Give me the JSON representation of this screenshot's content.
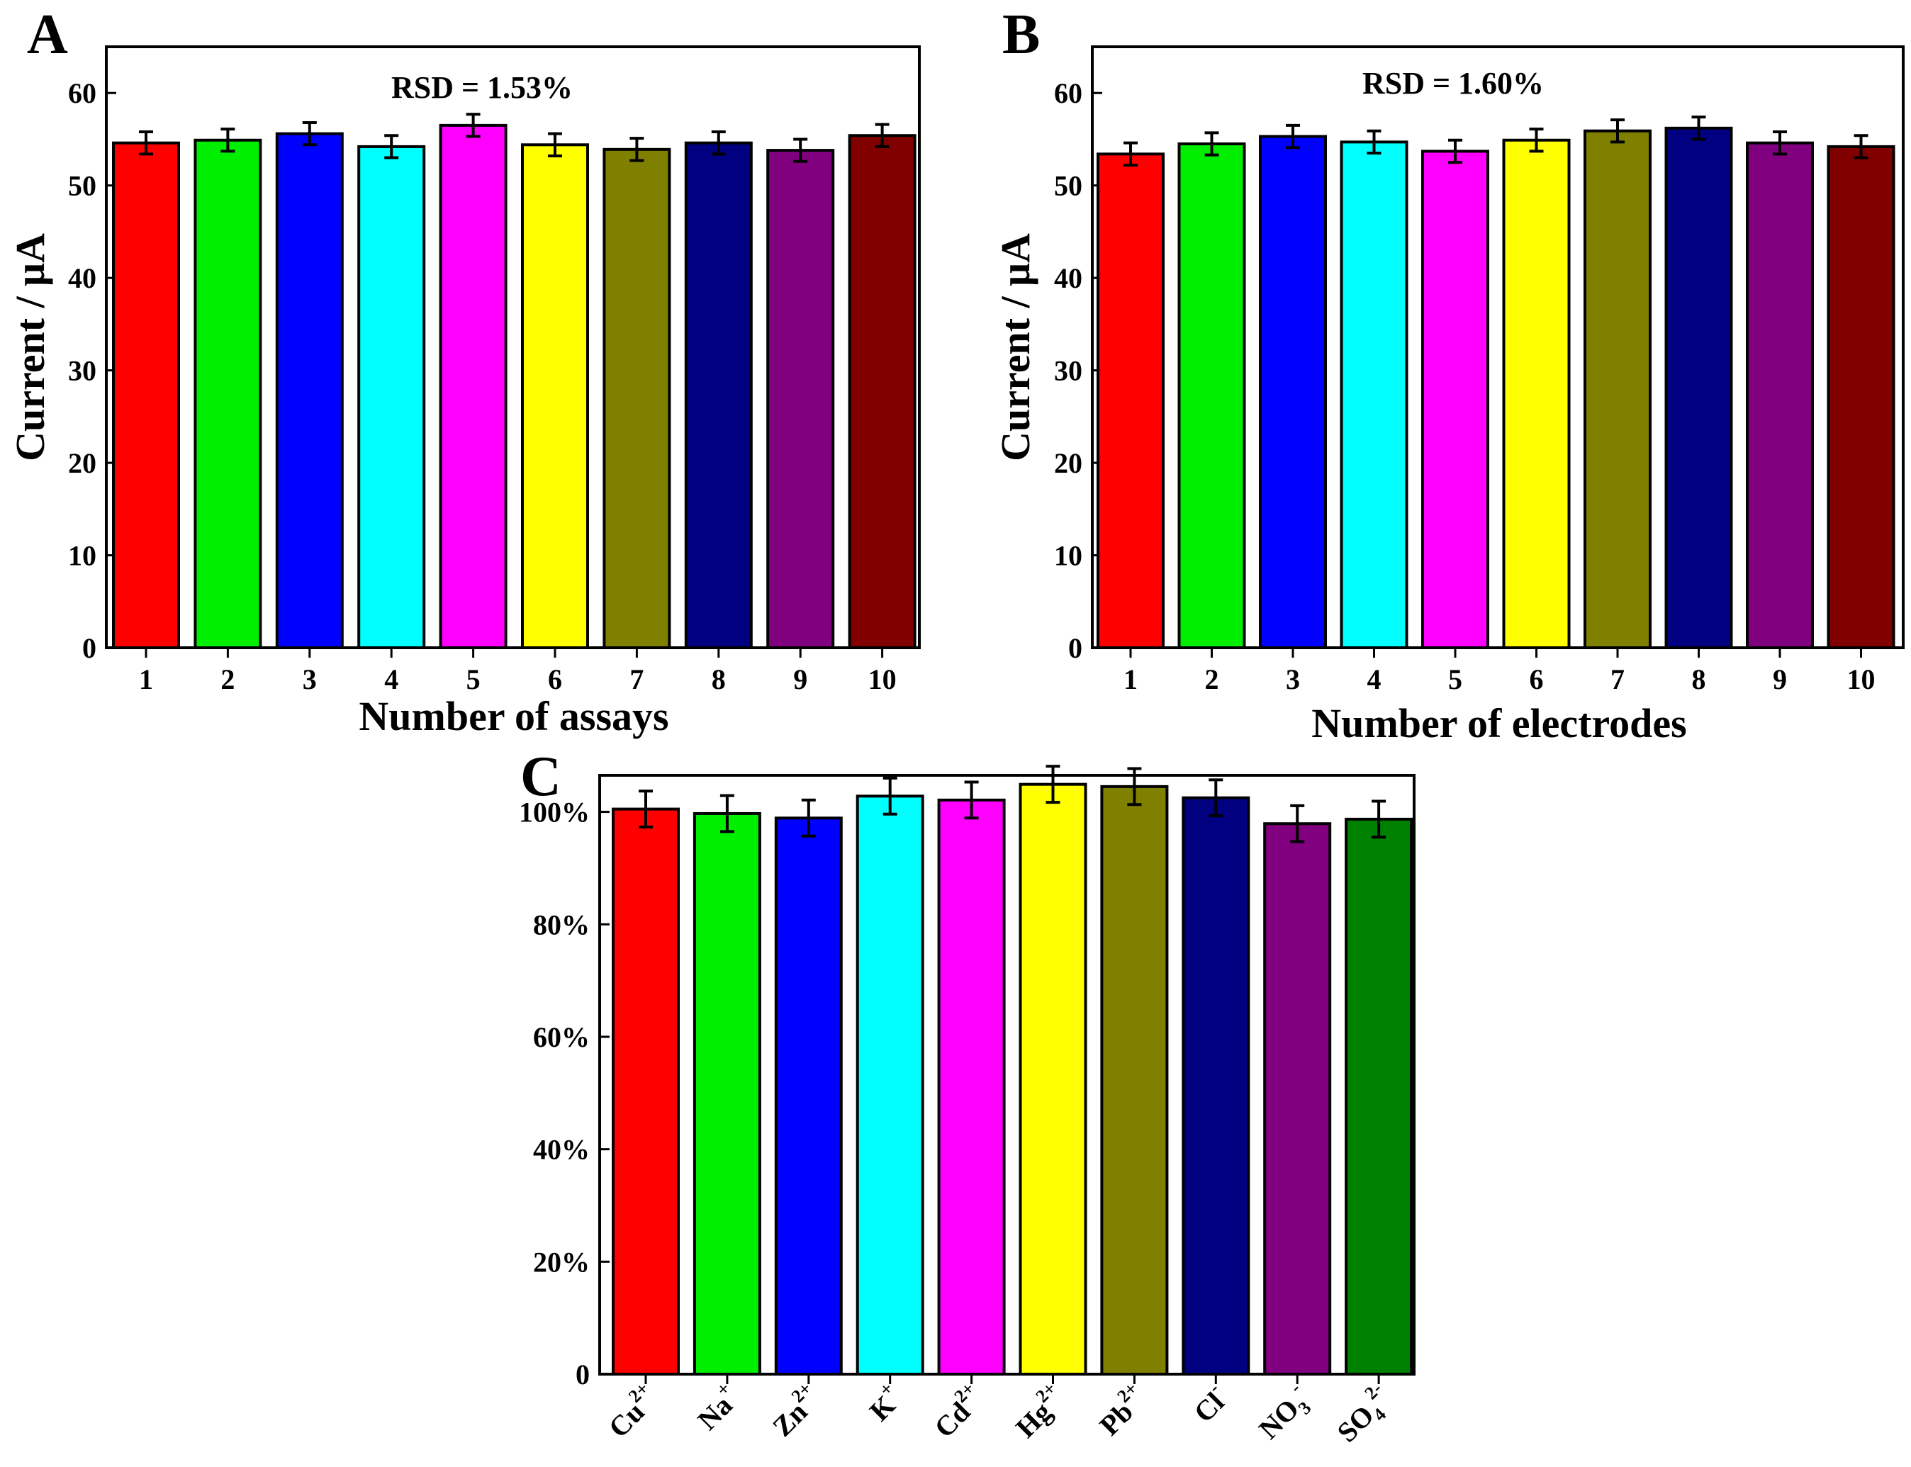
{
  "chart_data": [
    {
      "panel": "A",
      "type": "bar",
      "categories": [
        "1",
        "2",
        "3",
        "4",
        "5",
        "6",
        "7",
        "8",
        "9",
        "10"
      ],
      "values": [
        54.6,
        54.9,
        55.6,
        54.2,
        56.5,
        54.4,
        53.9,
        54.6,
        53.8,
        55.4
      ],
      "errors": [
        1.2,
        1.2,
        1.2,
        1.2,
        1.2,
        1.2,
        1.2,
        1.2,
        1.2,
        1.2
      ],
      "colors": [
        "#ff0000",
        "#00ee00",
        "#0000ff",
        "#00ffff",
        "#ff00ff",
        "#ffff00",
        "#808000",
        "#000080",
        "#800080",
        "#800000"
      ],
      "xlabel": "Number of assays",
      "ylabel": "Current / μA",
      "ylim": [
        0,
        65
      ],
      "yticks": [
        0,
        10,
        20,
        30,
        40,
        50,
        60
      ],
      "ytick_labels": [
        "0",
        "10",
        "20",
        "30",
        "40",
        "50",
        "60"
      ],
      "annotation": "RSD = 1.53%",
      "grid": false
    },
    {
      "panel": "B",
      "type": "bar",
      "categories": [
        "1",
        "2",
        "3",
        "4",
        "5",
        "6",
        "7",
        "8",
        "9",
        "10"
      ],
      "values": [
        53.4,
        54.5,
        55.3,
        54.7,
        53.7,
        54.9,
        55.9,
        56.2,
        54.6,
        54.2
      ],
      "errors": [
        1.2,
        1.2,
        1.2,
        1.2,
        1.2,
        1.2,
        1.2,
        1.2,
        1.2,
        1.2
      ],
      "colors": [
        "#ff0000",
        "#00ee00",
        "#0000ff",
        "#00ffff",
        "#ff00ff",
        "#ffff00",
        "#808000",
        "#000080",
        "#800080",
        "#800000"
      ],
      "xlabel": "Number of electrodes",
      "ylabel": "Current / μA",
      "ylim": [
        0,
        65
      ],
      "yticks": [
        0,
        10,
        20,
        30,
        40,
        50,
        60
      ],
      "ytick_labels": [
        "0",
        "10",
        "20",
        "30",
        "40",
        "50",
        "60"
      ],
      "annotation": "RSD = 1.60%",
      "grid": false
    },
    {
      "panel": "C",
      "type": "bar",
      "categories": [
        "Cu",
        "Na",
        "Zn",
        "K",
        "Cd",
        "Hg",
        "Pb",
        "Cl",
        "NO",
        "SO"
      ],
      "category_superscripts": [
        "2+",
        "+",
        "2+",
        "+",
        "2+",
        "2+",
        "2+",
        "-",
        "-",
        "2-"
      ],
      "category_subscripts": [
        "",
        "",
        "",
        "",
        "",
        "",
        "",
        "",
        "3",
        "4"
      ],
      "values": [
        100.5,
        99.7,
        98.9,
        102.8,
        102.1,
        104.9,
        104.5,
        102.5,
        97.9,
        98.7
      ],
      "errors": [
        3.2,
        3.2,
        3.2,
        3.2,
        3.2,
        3.2,
        3.2,
        3.2,
        3.2,
        3.2
      ],
      "colors": [
        "#ff0000",
        "#00ee00",
        "#0000ff",
        "#00ffff",
        "#ff00ff",
        "#ffff00",
        "#808000",
        "#000080",
        "#800080",
        "#008000"
      ],
      "xlabel": "",
      "ylabel": "",
      "ylim": [
        0,
        106.5
      ],
      "yticks": [
        0,
        20,
        40,
        60,
        80,
        100
      ],
      "ytick_labels": [
        "0",
        "20%",
        "40%",
        "60%",
        "80%",
        "100%"
      ],
      "grid": false
    }
  ]
}
